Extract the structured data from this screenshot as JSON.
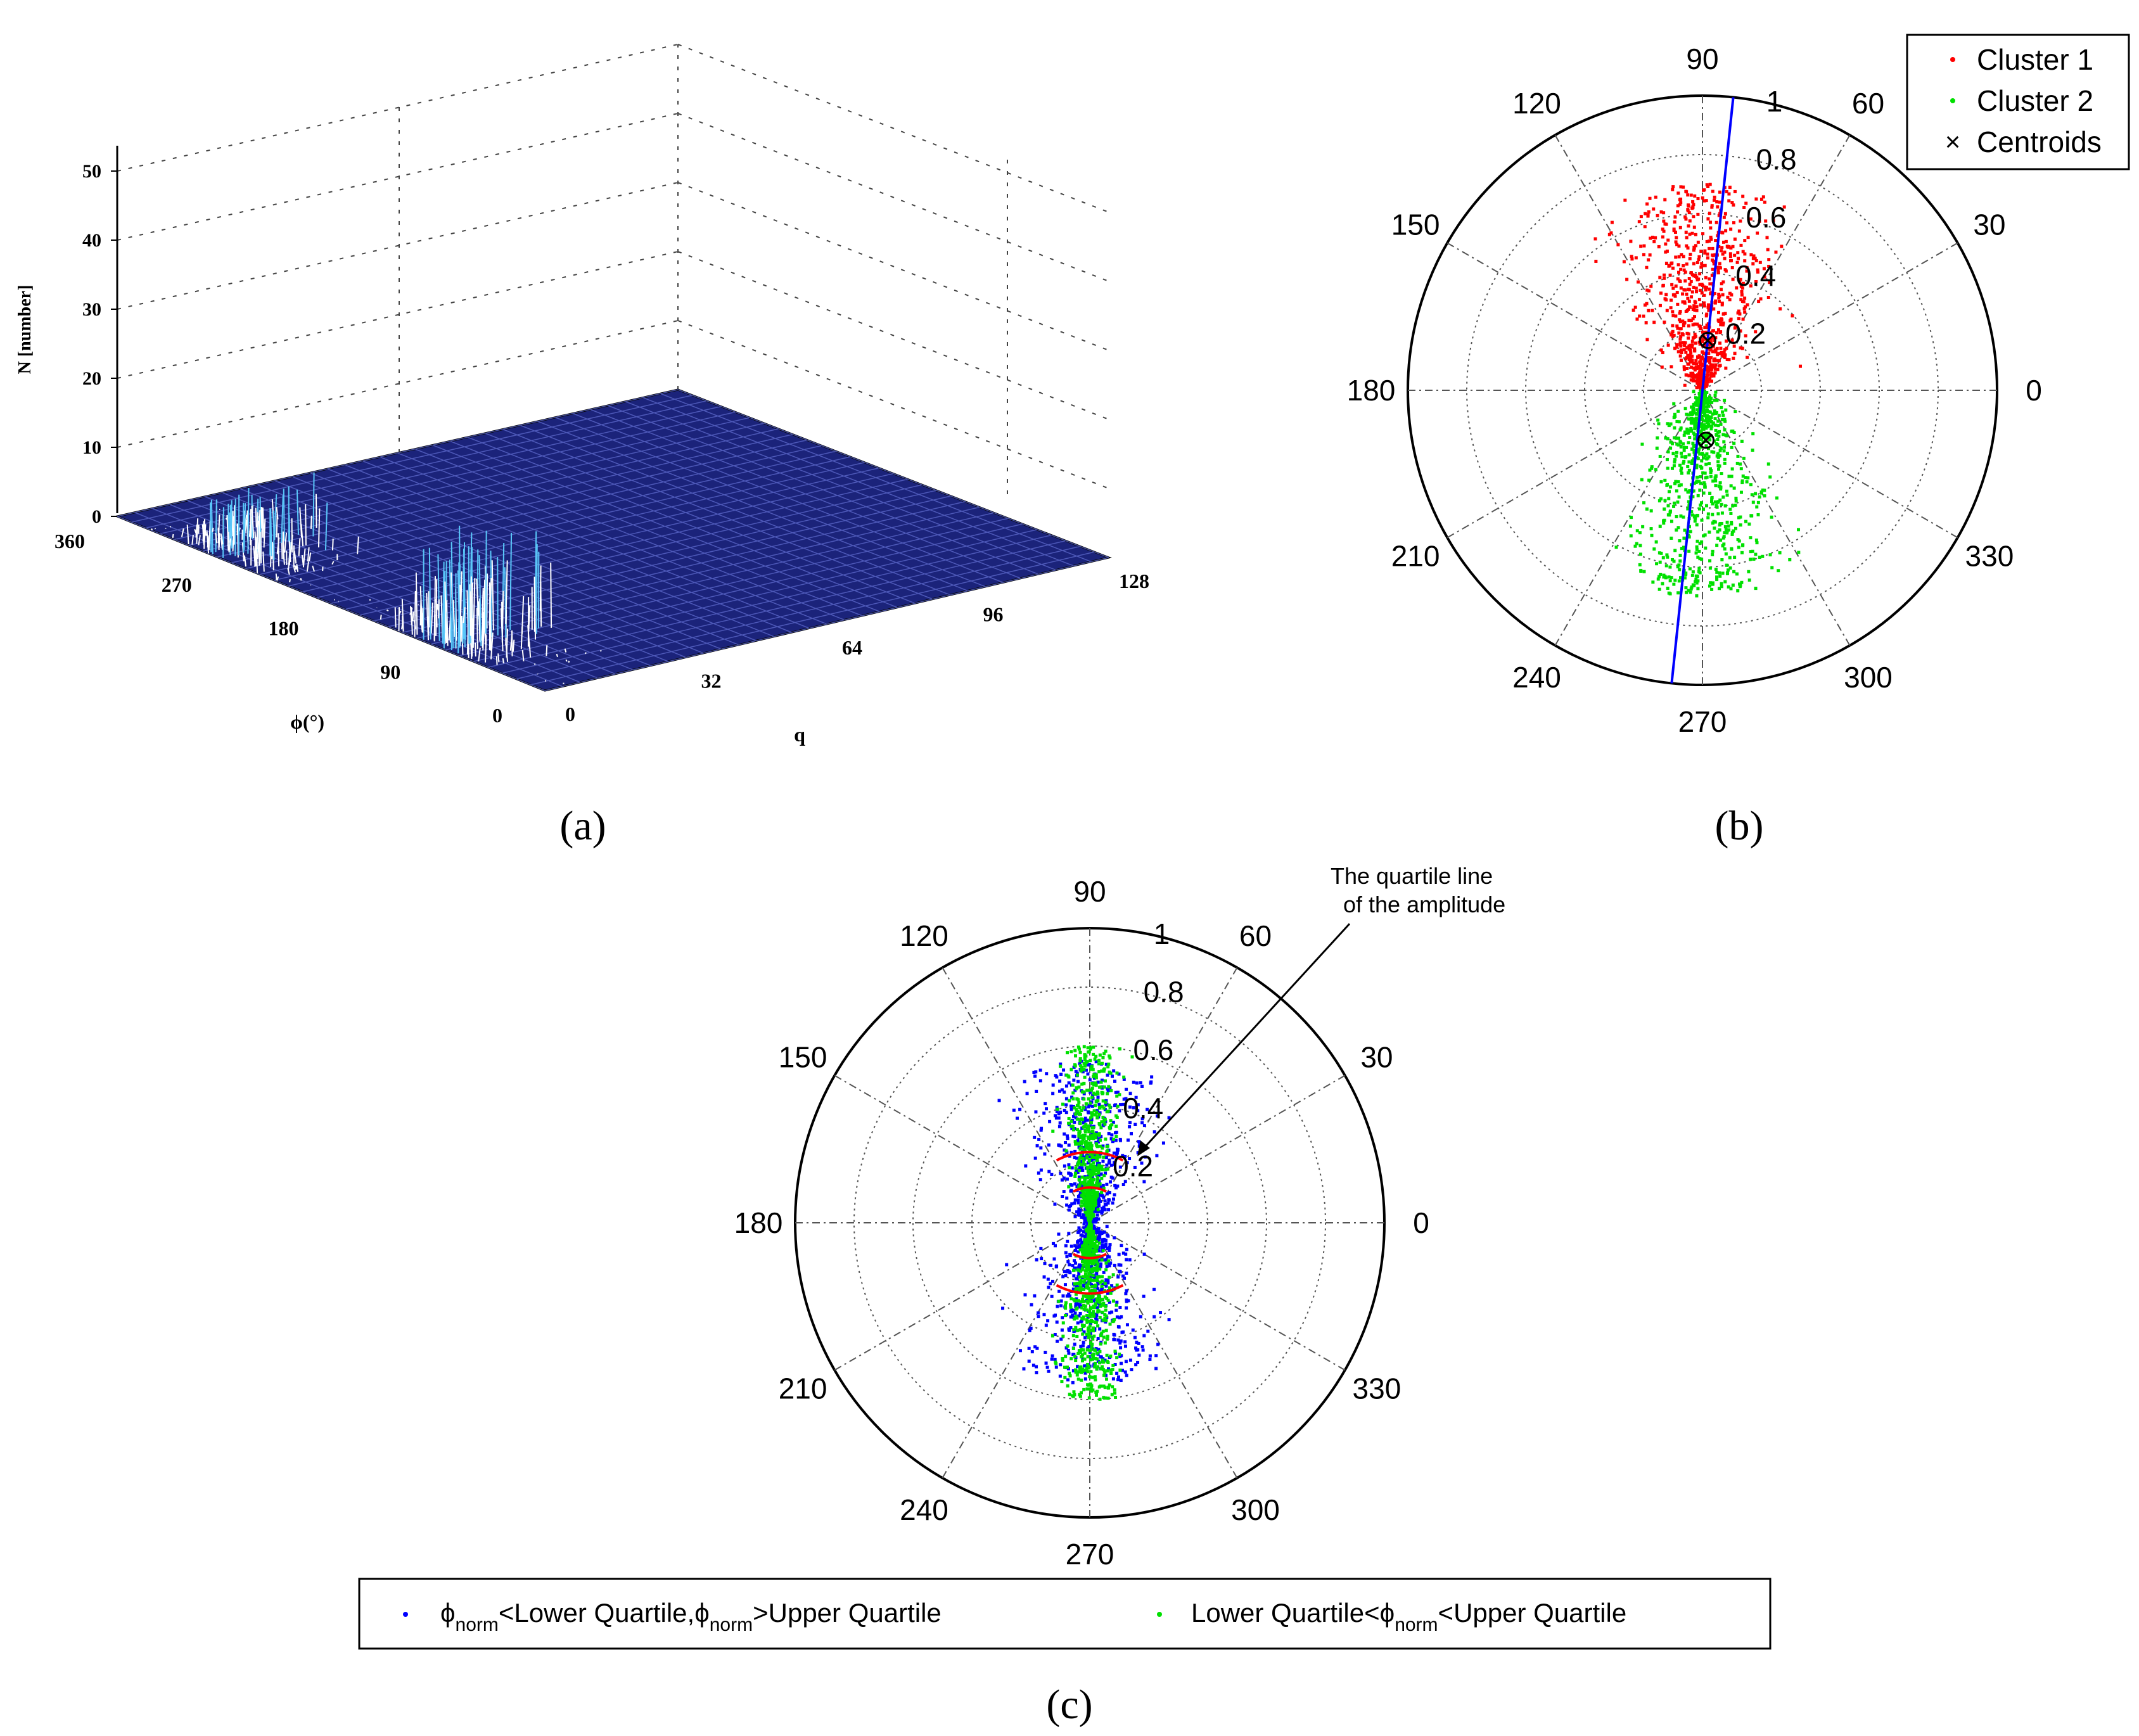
{
  "figure": {
    "caption_a": "(a)",
    "caption_b": "(b)",
    "caption_c": "(c)"
  },
  "chart_data": [
    {
      "panel": "a",
      "type": "surface3d",
      "title": "",
      "zlabel": "N [number]",
      "xlabel": "q",
      "ylabel": "ϕ(°)",
      "z_ticks": [
        "0",
        "10",
        "20",
        "30",
        "40",
        "50"
      ],
      "q_ticks": [
        "0",
        "32",
        "64",
        "96",
        "128"
      ],
      "phi_ticks": [
        "0",
        "90",
        "180",
        "270",
        "360"
      ],
      "zlim": [
        0,
        50
      ],
      "qlim": [
        0,
        128
      ],
      "philim": [
        0,
        360
      ],
      "peaks": [
        {
          "phi": 90,
          "q": 0,
          "max_N": 17
        },
        {
          "phi": 270,
          "q": 0,
          "max_N": 10
        }
      ],
      "colors": {
        "surface": "#1b237a",
        "mesh": "#ffffff",
        "peak": "#5ac8fa"
      }
    },
    {
      "panel": "b",
      "type": "polar-scatter",
      "angle_ticks": [
        "0",
        "30",
        "60",
        "90",
        "120",
        "150",
        "180",
        "210",
        "240",
        "270",
        "300",
        "330"
      ],
      "radial_ticks": [
        "0.2",
        "0.4",
        "0.6",
        "0.8",
        "1"
      ],
      "rlim": [
        0,
        1
      ],
      "series": [
        {
          "name": "Cluster 1",
          "color": "#ff0000",
          "angle_center": 90,
          "r_range": [
            0,
            0.7
          ]
        },
        {
          "name": "Cluster 2",
          "color": "#00e000",
          "angle_center": 270,
          "r_range": [
            0,
            0.7
          ]
        }
      ],
      "centroids": [
        {
          "angle": 84,
          "r": 0.17
        },
        {
          "angle": 274,
          "r": 0.17
        }
      ],
      "centroid_label": "Centroids",
      "boundary_line": {
        "angle": 84,
        "color": "#0000ff"
      },
      "legend": {
        "placement": "top-right",
        "entries": [
          "Cluster 1",
          "Cluster 2",
          "Centroids"
        ]
      }
    },
    {
      "panel": "c",
      "type": "polar-scatter",
      "angle_ticks": [
        "0",
        "30",
        "60",
        "90",
        "120",
        "150",
        "180",
        "210",
        "240",
        "270",
        "300",
        "330"
      ],
      "radial_ticks": [
        "0.2",
        "0.4",
        "0.6",
        "0.8",
        "1"
      ],
      "rlim": [
        0,
        1
      ],
      "annotation": "The quartile line of the amplitude",
      "annotation_line1": "The quartile line",
      "annotation_line2": "of the amplitude",
      "quartile_arcs_r": [
        0.12,
        0.24
      ],
      "series": [
        {
          "name": "ϕnorm<Lower Quartile,ϕnorm>Upper Quartile",
          "color": "#0000ff"
        },
        {
          "name": "Lower Quartile<ϕnorm<Upper Quartile",
          "color": "#00e000"
        }
      ],
      "legend": {
        "placement": "bottom",
        "phi": "ϕ",
        "norm": "norm",
        "e1_part1": "<Lower Quartile,",
        "e1_part2": ">Upper Quartile",
        "e2_part1": "Lower Quartile<",
        "e2_part2": "<Upper Quartile"
      }
    }
  ]
}
